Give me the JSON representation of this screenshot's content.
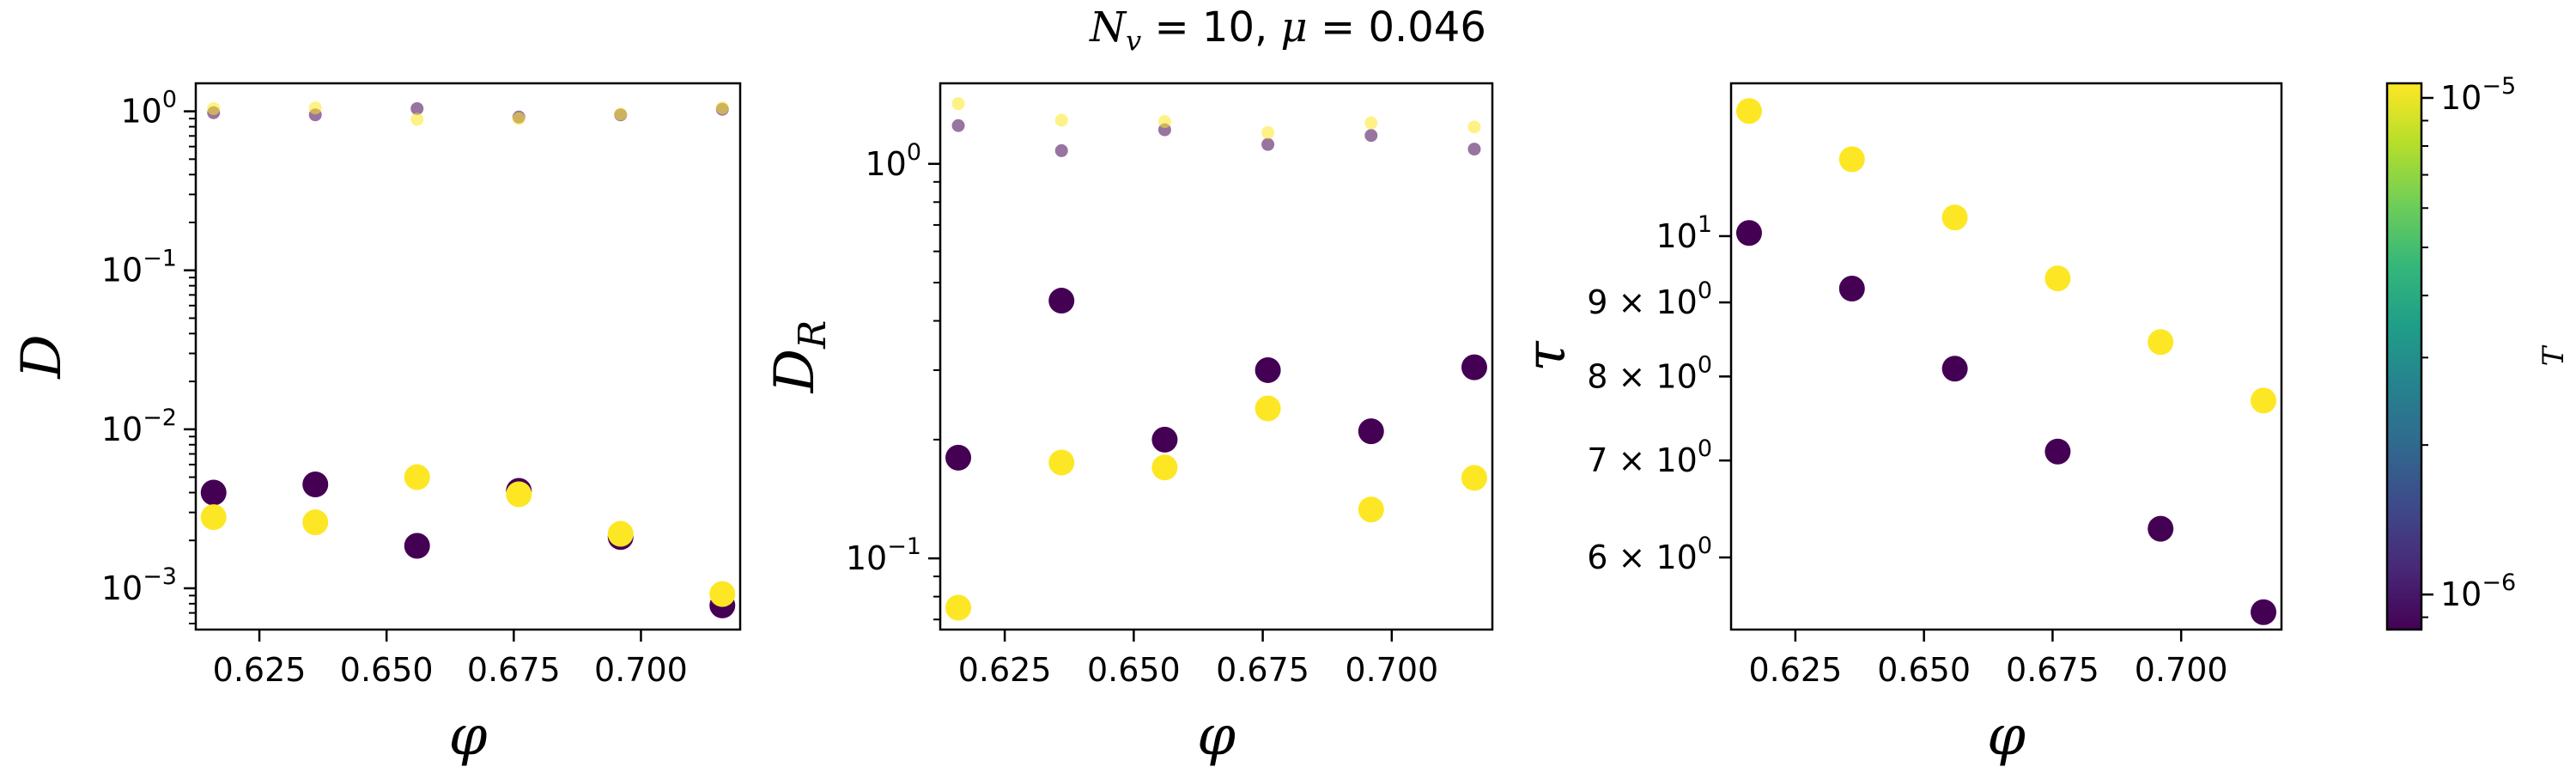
{
  "title": {
    "prefix": "N",
    "sub": "v",
    "mid": " = 10, ",
    "mu": "μ",
    "suffix": " = 0.046"
  },
  "colors": {
    "low_T": "#440154",
    "high_T": "#fde725",
    "colormap": [
      "#440154",
      "#482878",
      "#3e4989",
      "#31688e",
      "#26828e",
      "#1f9e89",
      "#35b779",
      "#6ece58",
      "#b5de2b",
      "#fde725"
    ]
  },
  "chart_data": [
    {
      "type": "scatter",
      "ylabel": "D",
      "xlabel": "φ",
      "yscale": "log",
      "xlim": [
        0.6125,
        0.7195
      ],
      "ylim": [
        0.00055,
        1.5
      ],
      "xticks": [
        0.625,
        0.65,
        0.675,
        0.7
      ],
      "xtick_labels": [
        "0.625",
        "0.650",
        "0.675",
        "0.700"
      ],
      "yticks": [
        0.001,
        0.01,
        0.1,
        1
      ],
      "ytick_labels": [
        [
          "10",
          "−3"
        ],
        [
          "10",
          "−2"
        ],
        [
          "10",
          "−1"
        ],
        [
          "10",
          "0"
        ]
      ],
      "series": [
        {
          "T": "1e-6",
          "color": "#440154",
          "marker": "large",
          "x": [
            0.616,
            0.636,
            0.656,
            0.676,
            0.696,
            0.716
          ],
          "y": [
            0.004,
            0.0045,
            0.00185,
            0.0041,
            0.0021,
            0.00078
          ]
        },
        {
          "T": "1e-5",
          "color": "#fde725",
          "marker": "large",
          "x": [
            0.616,
            0.636,
            0.656,
            0.676,
            0.696,
            0.716
          ],
          "y": [
            0.0028,
            0.0026,
            0.005,
            0.0039,
            0.0022,
            0.00092
          ]
        },
        {
          "T": "1e-6",
          "color": "#440154",
          "marker": "small-faded",
          "x": [
            0.616,
            0.636,
            0.656,
            0.676,
            0.696,
            0.716
          ],
          "y": [
            0.98,
            0.95,
            1.04,
            0.92,
            0.95,
            1.03
          ]
        },
        {
          "T": "1e-5",
          "color": "#fde725",
          "marker": "small-faded",
          "x": [
            0.616,
            0.636,
            0.656,
            0.676,
            0.696,
            0.716
          ],
          "y": [
            1.04,
            1.05,
            0.89,
            0.9,
            0.96,
            1.05
          ]
        }
      ]
    },
    {
      "type": "scatter",
      "ylabel": "D",
      "ylabel_sub": "R",
      "xlabel": "φ",
      "yscale": "log",
      "xlim": [
        0.6125,
        0.7195
      ],
      "ylim": [
        0.066,
        1.6
      ],
      "xticks": [
        0.625,
        0.65,
        0.675,
        0.7
      ],
      "xtick_labels": [
        "0.625",
        "0.650",
        "0.675",
        "0.700"
      ],
      "yticks": [
        0.1,
        1
      ],
      "ytick_labels": [
        [
          "10",
          "−1"
        ],
        [
          "10",
          "0"
        ]
      ],
      "series": [
        {
          "T": "1e-6",
          "color": "#440154",
          "marker": "large",
          "x": [
            0.616,
            0.636,
            0.656,
            0.676,
            0.696,
            0.716
          ],
          "y": [
            0.18,
            0.45,
            0.2,
            0.3,
            0.21,
            0.305
          ]
        },
        {
          "T": "1e-5",
          "color": "#fde725",
          "marker": "large",
          "x": [
            0.616,
            0.636,
            0.656,
            0.676,
            0.696,
            0.716
          ],
          "y": [
            0.075,
            0.175,
            0.17,
            0.24,
            0.133,
            0.16
          ]
        },
        {
          "T": "1e-6",
          "color": "#440154",
          "marker": "small-faded",
          "x": [
            0.616,
            0.636,
            0.656,
            0.676,
            0.696,
            0.716
          ],
          "y": [
            1.25,
            1.08,
            1.22,
            1.12,
            1.18,
            1.09
          ]
        },
        {
          "T": "1e-5",
          "color": "#fde725",
          "marker": "small-faded",
          "x": [
            0.616,
            0.636,
            0.656,
            0.676,
            0.696,
            0.716
          ],
          "y": [
            1.42,
            1.29,
            1.28,
            1.2,
            1.27,
            1.24
          ]
        }
      ]
    },
    {
      "type": "scatter",
      "ylabel": "τ",
      "xlabel": "φ",
      "yscale": "log",
      "xlim": [
        0.6125,
        0.7195
      ],
      "ylim": [
        5.35,
        12.75
      ],
      "xticks": [
        0.625,
        0.65,
        0.675,
        0.7
      ],
      "xtick_labels": [
        "0.625",
        "0.650",
        "0.675",
        "0.700"
      ],
      "yticks": [
        6,
        7,
        8,
        9,
        10
      ],
      "ytick_labels": [
        [
          "6 × 10",
          "0"
        ],
        [
          "7 × 10",
          "0"
        ],
        [
          "8 × 10",
          "0"
        ],
        [
          "9 × 10",
          "0"
        ],
        [
          "10",
          "1"
        ]
      ],
      "series": [
        {
          "T": "1e-6",
          "color": "#440154",
          "marker": "large",
          "x": [
            0.616,
            0.636,
            0.656,
            0.676,
            0.696,
            0.716
          ],
          "y": [
            10.05,
            9.2,
            8.1,
            7.1,
            6.28,
            5.5
          ]
        },
        {
          "T": "1e-5",
          "color": "#fde725",
          "marker": "large",
          "x": [
            0.616,
            0.636,
            0.656,
            0.676,
            0.696,
            0.716
          ],
          "y": [
            12.2,
            11.3,
            10.3,
            9.35,
            8.45,
            7.7
          ]
        }
      ]
    }
  ],
  "colorbar": {
    "label": "T",
    "scale": "log",
    "range": [
      8.5e-07,
      1.07e-05
    ],
    "ticks": [
      1e-06,
      1e-05
    ],
    "tick_labels": [
      [
        "10",
        "−6"
      ],
      [
        "10",
        "−5"
      ]
    ]
  }
}
